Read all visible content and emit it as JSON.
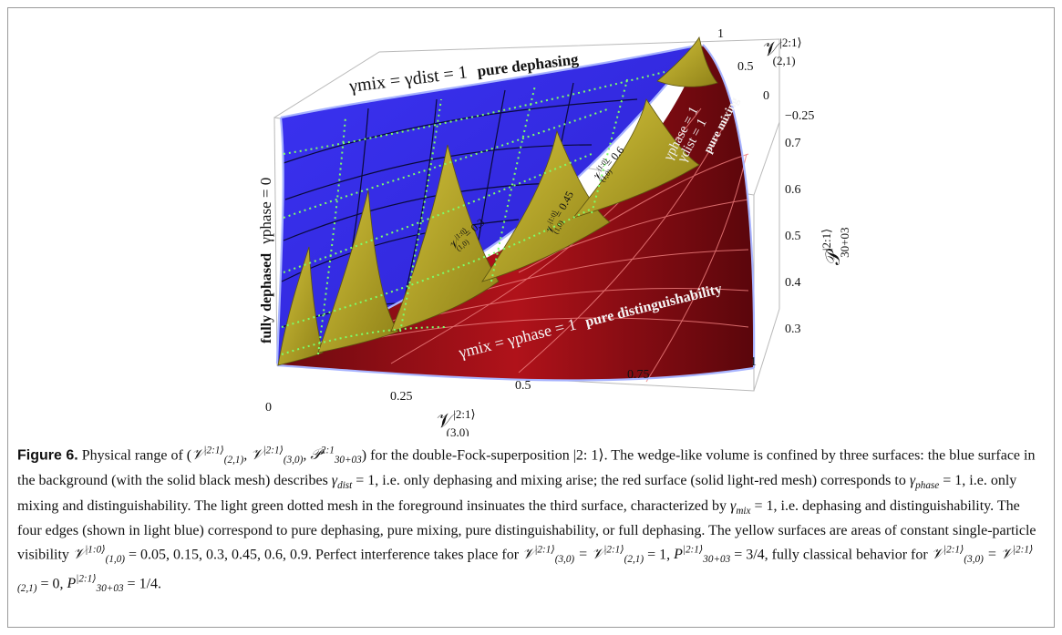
{
  "figure": {
    "edges": {
      "top": "γmix = γdist = 1",
      "top_bold": "pure dephasing",
      "bottom": "γmix = γphase = 1",
      "bottom_bold": "pure distinguishability",
      "left_bold": "fully dephased",
      "left": "γphase = 0",
      "right_top": "γphase = 1",
      "right_bottom": "γdist = 1",
      "right_bold": "pure mixing"
    },
    "yellow_labels": [
      "0.3",
      "0.45",
      "0.6"
    ],
    "axis_x": {
      "ticks": [
        "0",
        "0.25",
        "0.5",
        "0.75",
        "1"
      ],
      "label_main": "𝒱",
      "label_sup": "|2:1⟩",
      "label_sub": "(3,0)"
    },
    "axis_depth": {
      "ticks": [
        "1",
        "0.5",
        "0",
        "−0.25"
      ],
      "label_main": "𝒱",
      "label_sup": "|2:1⟩",
      "label_sub": "(2,1)"
    },
    "axis_z": {
      "ticks": [
        "0.7",
        "0.6",
        "0.5",
        "0.4",
        "0.3"
      ],
      "label_main": "𝒫",
      "label_sup": "|2:1⟩",
      "label_sub": "30+03"
    },
    "colors": {
      "blue": "#3a2ff0",
      "red": "#a0101a",
      "yellow": "#b8a822",
      "edge": "#a8b4ff",
      "green_mesh": "#7cff6a"
    }
  },
  "caption": {
    "lead": "Figure 6.",
    "t1": " Physical range of (",
    "t2": ") for the double-Fock-superposition |2: 1⟩. The wedge-like volume is confined by three surfaces: the blue surface in the background (with the solid black mesh) describes ",
    "t3": " = 1, i.e. only dephasing and mixing arise; the red surface (solid light-red mesh) corresponds to ",
    "t4": " = 1, i.e. only mixing and distinguishability. The light green dotted mesh in the foreground insinuates the third surface, characterized by ",
    "t5": " = 1, i.e. dephasing and distinguishability. The four edges (shown in light blue) correspond to pure dephasing, pure mixing, pure distinguishability, or full dephasing. The yellow surfaces are areas of constant single-particle visibility ",
    "t6": " = 0.05, 0.15, 0.3, 0.45, 0.6, 0.9. Perfect interference takes place for ",
    "t7": " = 1, ",
    "t8": " = 3/4, fully classical behavior for ",
    "t9": " = 0, ",
    "t10": " = 1/4."
  }
}
